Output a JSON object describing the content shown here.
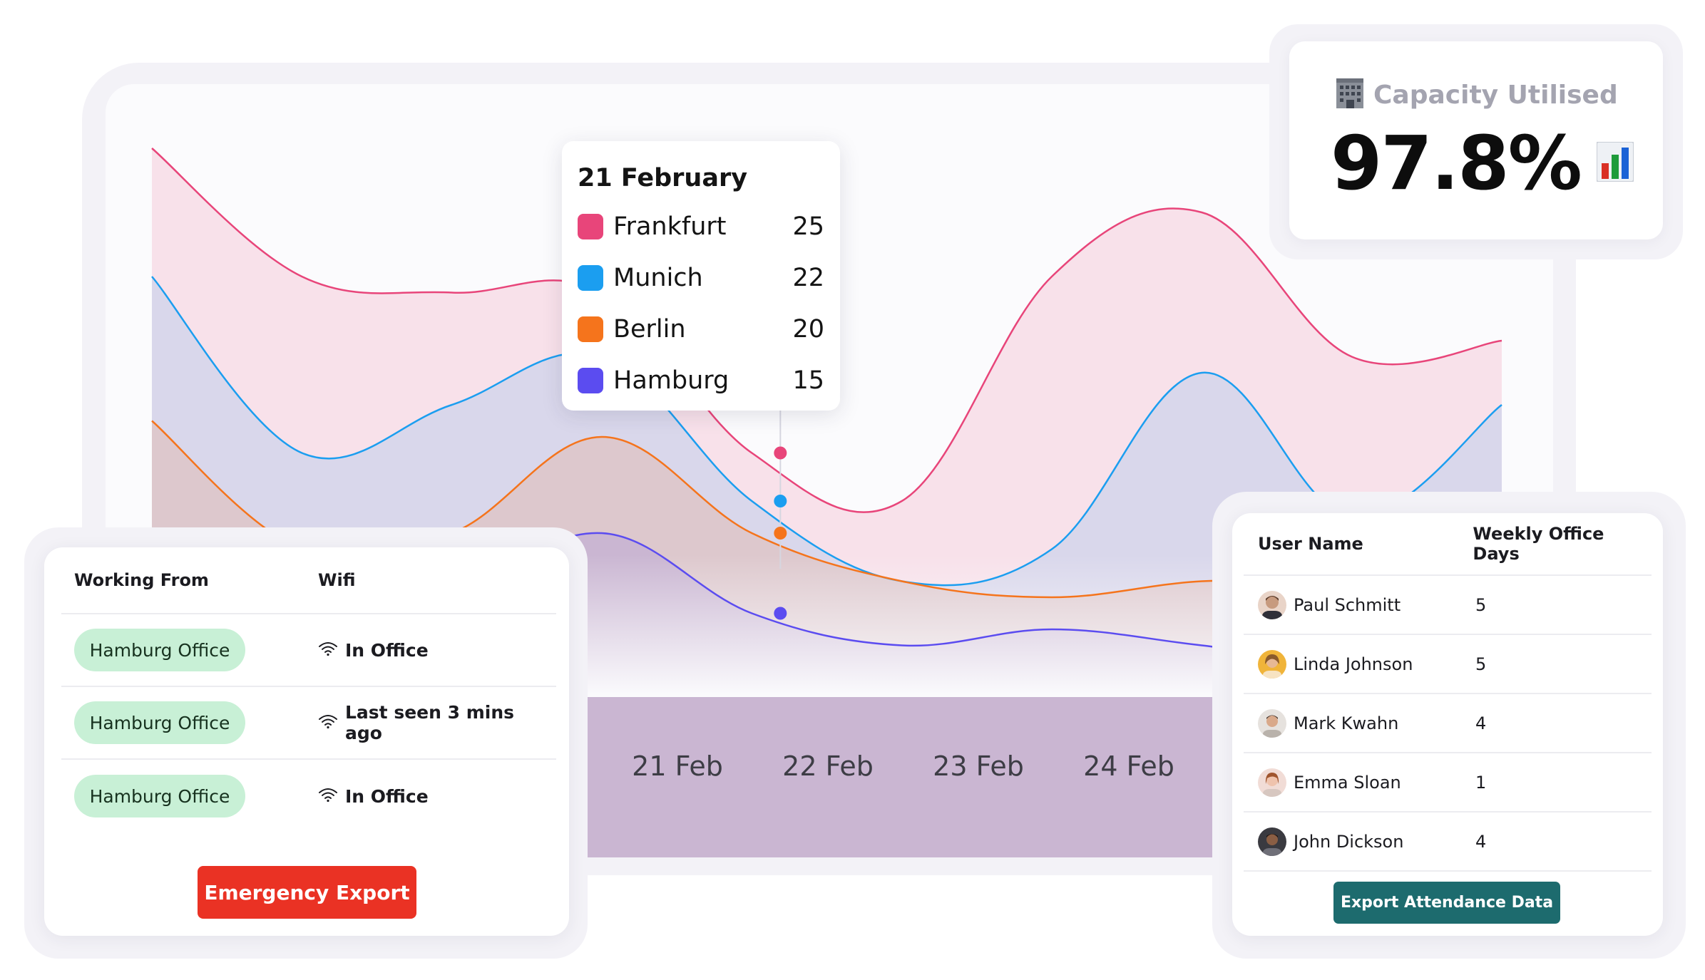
{
  "chart_data": {
    "type": "area",
    "categories": [
      "",
      "",
      "",
      "",
      "21 Feb",
      "22 Feb",
      "23 Feb",
      "24 Feb",
      "",
      ""
    ],
    "x_tick_labels": [
      "21 Feb",
      "22 Feb",
      "23 Feb",
      "24 Feb"
    ],
    "series": [
      {
        "name": "Frankfurt",
        "color": "#e8457a",
        "values": [
          44,
          36,
          35,
          35,
          25,
          22,
          36,
          40,
          31,
          32
        ]
      },
      {
        "name": "Munich",
        "color": "#1b9ef0",
        "values": [
          36,
          25,
          28,
          31,
          22,
          17,
          19,
          30,
          21,
          28
        ]
      },
      {
        "name": "Berlin",
        "color": "#f5741c",
        "values": [
          27,
          19,
          20,
          26,
          20,
          17,
          16,
          17,
          17,
          20
        ]
      },
      {
        "name": "Hamburg",
        "color": "#5b4cf0",
        "values": [
          20,
          12,
          16,
          20,
          15,
          13,
          14,
          13,
          12,
          15
        ]
      }
    ],
    "ylim": [
      0,
      48
    ],
    "grid": false
  },
  "tooltip": {
    "title": "21 February",
    "rows": [
      {
        "city": "Frankfurt",
        "value": "25",
        "color": "#e8457a"
      },
      {
        "city": "Munich",
        "value": "22",
        "color": "#1b9ef0"
      },
      {
        "city": "Berlin",
        "value": "20",
        "color": "#f5741c"
      },
      {
        "city": "Hamburg",
        "value": "15",
        "color": "#5b4cf0"
      }
    ]
  },
  "capacity": {
    "label": "Capacity Utilised",
    "value": "97.8%",
    "icons": [
      "office-building-icon",
      "bar-chart-icon"
    ]
  },
  "working_from": {
    "headers": {
      "location": "Working From",
      "wifi": "Wifi"
    },
    "rows": [
      {
        "location": "Hamburg Office",
        "wifi": "In Office"
      },
      {
        "location": "Hamburg Office",
        "wifi": "Last seen 3 mins ago"
      },
      {
        "location": "Hamburg Office",
        "wifi": "In Office"
      }
    ],
    "button_label": "Emergency Export",
    "pill_color": "#c8f0d6",
    "button_color": "#ea3224"
  },
  "users": {
    "headers": {
      "name": "User Name",
      "days": "Weekly Office Days"
    },
    "rows": [
      {
        "name": "Paul Schmitt",
        "days": "5"
      },
      {
        "name": "Linda Johnson",
        "days": "5"
      },
      {
        "name": "Mark Kwahn",
        "days": "4"
      },
      {
        "name": "Emma Sloan",
        "days": "1"
      },
      {
        "name": "John Dickson",
        "days": "4"
      }
    ],
    "button_label": "Export Attendance Data",
    "button_color": "#1d6b6e"
  }
}
